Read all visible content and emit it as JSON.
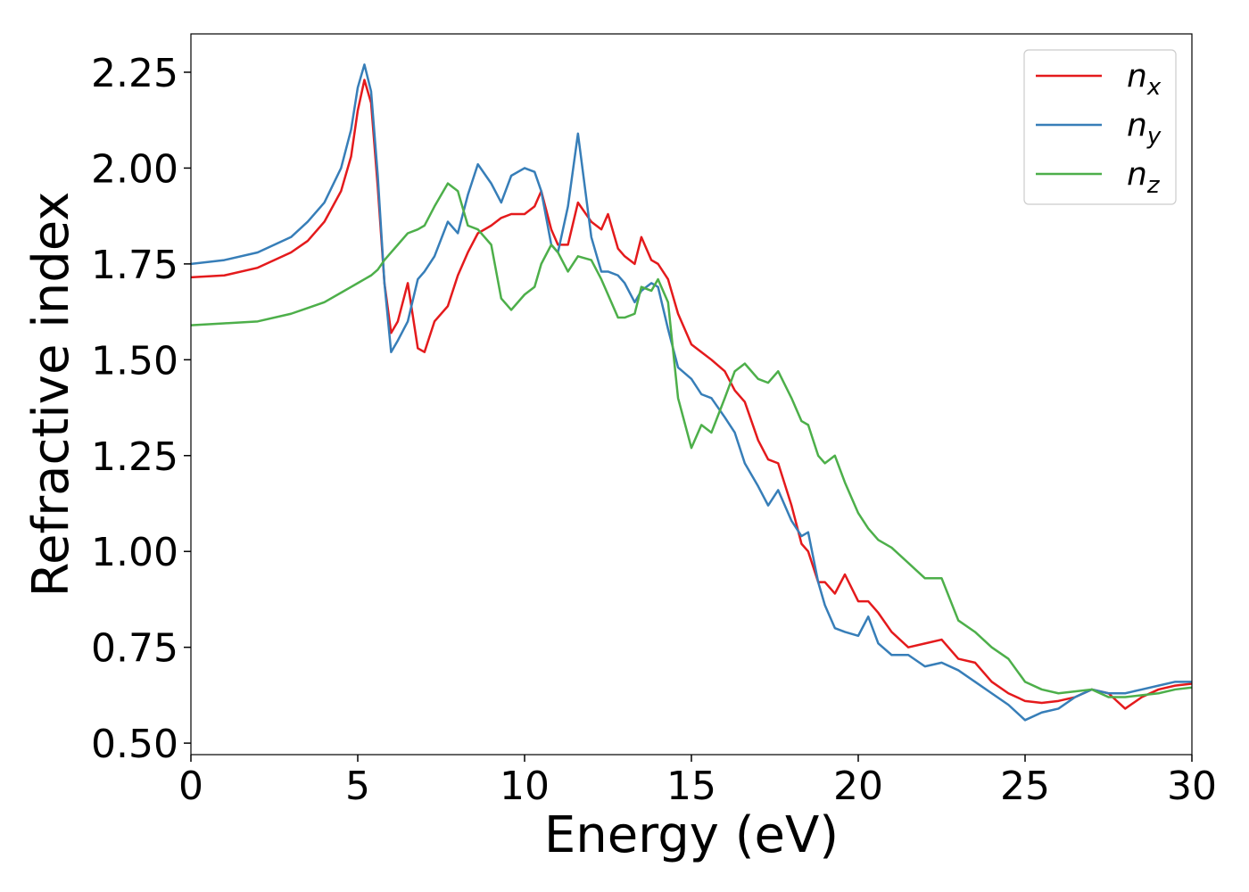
{
  "chart_data": {
    "type": "line",
    "xlabel": "Energy (eV)",
    "ylabel": "Refractive index",
    "x": [
      0,
      1,
      2,
      3,
      3.5,
      4,
      4.5,
      4.8,
      5.0,
      5.2,
      5.4,
      5.6,
      5.8,
      6.0,
      6.2,
      6.5,
      6.8,
      7.0,
      7.3,
      7.7,
      8,
      8.3,
      8.6,
      9,
      9.3,
      9.6,
      10,
      10.3,
      10.5,
      10.8,
      11,
      11.3,
      11.6,
      12,
      12.3,
      12.5,
      12.8,
      13,
      13.3,
      13.5,
      13.8,
      14,
      14.3,
      14.6,
      15,
      15.3,
      15.6,
      16,
      16.3,
      16.6,
      17,
      17.3,
      17.6,
      18,
      18.3,
      18.5,
      18.8,
      19,
      19.3,
      19.6,
      20,
      20.3,
      20.6,
      21,
      21.5,
      22,
      22.5,
      23,
      23.5,
      24,
      24.5,
      25,
      25.5,
      26,
      26.5,
      27,
      27.5,
      28,
      28.5,
      29,
      29.5,
      30
    ],
    "series": [
      {
        "name": "nx",
        "color": "#e41a1c",
        "values": [
          1.715,
          1.72,
          1.74,
          1.78,
          1.81,
          1.86,
          1.94,
          2.03,
          2.15,
          2.23,
          2.17,
          1.95,
          1.7,
          1.57,
          1.6,
          1.7,
          1.53,
          1.52,
          1.6,
          1.64,
          1.72,
          1.78,
          1.83,
          1.85,
          1.87,
          1.88,
          1.88,
          1.9,
          1.94,
          1.84,
          1.8,
          1.8,
          1.91,
          1.86,
          1.84,
          1.88,
          1.79,
          1.77,
          1.75,
          1.82,
          1.76,
          1.75,
          1.71,
          1.62,
          1.54,
          1.52,
          1.5,
          1.47,
          1.42,
          1.39,
          1.29,
          1.24,
          1.23,
          1.12,
          1.02,
          1.0,
          0.92,
          0.92,
          0.89,
          0.94,
          0.87,
          0.87,
          0.84,
          0.79,
          0.75,
          0.76,
          0.77,
          0.72,
          0.71,
          0.66,
          0.63,
          0.61,
          0.605,
          0.61,
          0.62,
          0.64,
          0.63,
          0.59,
          0.62,
          0.64,
          0.65,
          0.655
        ]
      },
      {
        "name": "ny",
        "color": "#377eb8",
        "values": [
          1.75,
          1.76,
          1.78,
          1.82,
          1.86,
          1.91,
          2.0,
          2.1,
          2.21,
          2.27,
          2.2,
          1.98,
          1.7,
          1.52,
          1.55,
          1.6,
          1.71,
          1.73,
          1.77,
          1.86,
          1.83,
          1.93,
          2.01,
          1.96,
          1.91,
          1.98,
          2.0,
          1.99,
          1.94,
          1.8,
          1.78,
          1.9,
          2.09,
          1.82,
          1.73,
          1.73,
          1.72,
          1.7,
          1.65,
          1.68,
          1.7,
          1.69,
          1.58,
          1.48,
          1.45,
          1.41,
          1.4,
          1.35,
          1.31,
          1.23,
          1.17,
          1.12,
          1.16,
          1.08,
          1.04,
          1.05,
          0.92,
          0.86,
          0.8,
          0.79,
          0.78,
          0.83,
          0.76,
          0.73,
          0.73,
          0.7,
          0.71,
          0.69,
          0.66,
          0.63,
          0.6,
          0.56,
          0.58,
          0.59,
          0.62,
          0.64,
          0.63,
          0.63,
          0.64,
          0.65,
          0.66,
          0.66
        ]
      },
      {
        "name": "nz",
        "color": "#4daf4a",
        "values": [
          1.59,
          1.595,
          1.6,
          1.62,
          1.635,
          1.65,
          1.675,
          1.69,
          1.7,
          1.71,
          1.72,
          1.735,
          1.76,
          1.78,
          1.8,
          1.83,
          1.84,
          1.85,
          1.9,
          1.96,
          1.94,
          1.85,
          1.84,
          1.8,
          1.66,
          1.63,
          1.67,
          1.69,
          1.75,
          1.8,
          1.78,
          1.73,
          1.77,
          1.76,
          1.71,
          1.67,
          1.61,
          1.61,
          1.62,
          1.69,
          1.68,
          1.71,
          1.65,
          1.4,
          1.27,
          1.33,
          1.31,
          1.4,
          1.47,
          1.49,
          1.45,
          1.44,
          1.47,
          1.4,
          1.34,
          1.33,
          1.25,
          1.23,
          1.25,
          1.18,
          1.1,
          1.06,
          1.03,
          1.01,
          0.97,
          0.93,
          0.93,
          0.82,
          0.79,
          0.75,
          0.72,
          0.66,
          0.64,
          0.63,
          0.635,
          0.64,
          0.62,
          0.62,
          0.625,
          0.63,
          0.64,
          0.645
        ]
      }
    ],
    "xlim": [
      0,
      30
    ],
    "xticks": [
      0,
      5,
      10,
      15,
      20,
      25,
      30
    ],
    "ylim": [
      0.47,
      2.35
    ],
    "yticks": [
      {
        "value": 0.5,
        "label": "0.50"
      },
      {
        "value": 0.75,
        "label": "0.75"
      },
      {
        "value": 1.0,
        "label": "1.00"
      },
      {
        "value": 1.25,
        "label": "1.25"
      },
      {
        "value": 1.5,
        "label": "1.50"
      },
      {
        "value": 1.75,
        "label": "1.75"
      },
      {
        "value": 2.0,
        "label": "2.00"
      },
      {
        "value": 2.25,
        "label": "2.25"
      }
    ],
    "legend": "upper right",
    "grid": false
  }
}
